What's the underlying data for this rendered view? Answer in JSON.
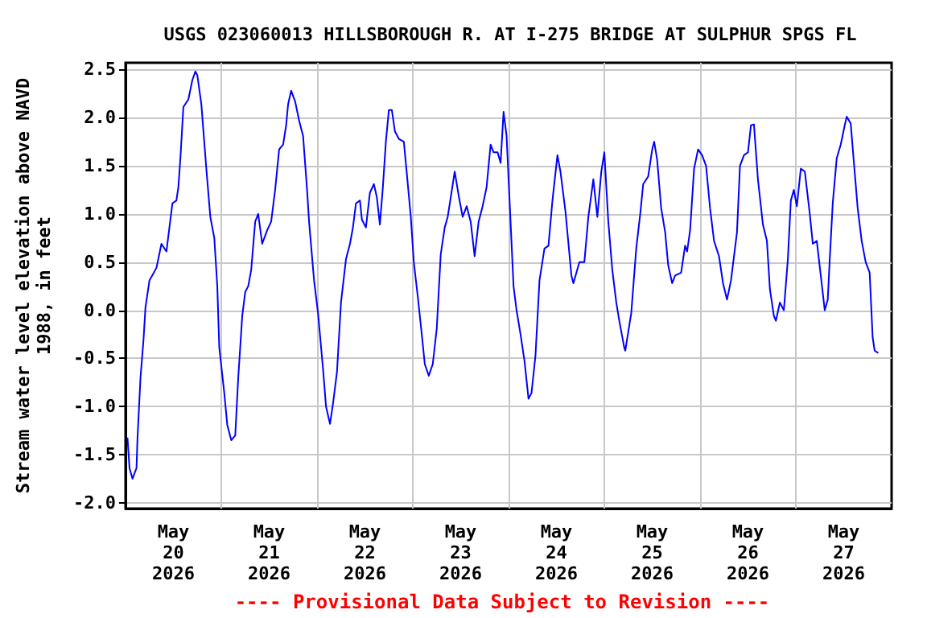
{
  "chart_data": {
    "type": "line",
    "title": "USGS 023060013 HILLSBOROUGH R. AT I-275 BRIDGE AT SULPHUR SPGS FL",
    "ylabel": "Stream water level elevation above NAVD\n1988, in feet",
    "annotations": [
      "---- Provisional Data Subject to Revision ----"
    ],
    "xlim": [
      "2026-05-20T00:00",
      "2026-05-28T00:00"
    ],
    "xticks": [
      {
        "value": "2026-05-20T12:00",
        "label": "May\n20\n2026"
      },
      {
        "value": "2026-05-21T12:00",
        "label": "May\n21\n2026"
      },
      {
        "value": "2026-05-22T12:00",
        "label": "May\n22\n2026"
      },
      {
        "value": "2026-05-23T12:00",
        "label": "May\n23\n2026"
      },
      {
        "value": "2026-05-24T12:00",
        "label": "May\n24\n2026"
      },
      {
        "value": "2026-05-25T12:00",
        "label": "May\n25\n2026"
      },
      {
        "value": "2026-05-26T12:00",
        "label": "May\n26\n2026"
      },
      {
        "value": "2026-05-27T12:00",
        "label": "May\n27\n2026"
      },
      {
        "value": "2026-05-21T00:00",
        "label": null
      },
      {
        "value": "2026-05-22T00:00",
        "label": null
      },
      {
        "value": "2026-05-23T00:00",
        "label": null
      },
      {
        "value": "2026-05-24T00:00",
        "label": null
      },
      {
        "value": "2026-05-25T00:00",
        "label": null
      },
      {
        "value": "2026-05-26T00:00",
        "label": null
      },
      {
        "value": "2026-05-27T00:00",
        "label": null
      }
    ],
    "ylim": [
      -2.06,
      2.57
    ],
    "yticks": [
      2.5,
      {
        "value": 2,
        "label": "2.0"
      },
      1.5,
      {
        "value": 1,
        "label": "1.0"
      },
      0.5,
      {
        "value": 0,
        "label": "0.0"
      },
      -0.5,
      {
        "value": -1,
        "label": "-1.0"
      },
      -1.5,
      {
        "value": -2,
        "label": "-2.0"
      }
    ],
    "grid": true,
    "marker": "none",
    "line_style": "solid",
    "series": [
      {
        "color": "#0000ff",
        "x": [
          "2026-05-20T00:30",
          "2026-05-20T01:00",
          "2026-05-20T01:45",
          "2026-05-20T02:45",
          "2026-05-20T03:00",
          "2026-05-20T03:45",
          "2026-05-20T04:30",
          "2026-05-20T05:00",
          "2026-05-20T06:00",
          "2026-05-20T07:45",
          "2026-05-20T09:00",
          "2026-05-20T10:15",
          "2026-05-20T11:00",
          "2026-05-20T11:45",
          "2026-05-20T12:45",
          "2026-05-20T13:15",
          "2026-05-20T13:45",
          "2026-05-20T14:30",
          "2026-05-20T15:45",
          "2026-05-20T16:45",
          "2026-05-20T17:30",
          "2026-05-20T18:00",
          "2026-05-20T19:00",
          "2026-05-20T20:15",
          "2026-05-20T21:15",
          "2026-05-20T22:15",
          "2026-05-20T23:00",
          "2026-05-20T23:30",
          "2026-05-21T00:45",
          "2026-05-21T01:30",
          "2026-05-21T02:30",
          "2026-05-21T03:30",
          "2026-05-21T04:15",
          "2026-05-21T05:15",
          "2026-05-21T06:00",
          "2026-05-21T06:45",
          "2026-05-21T07:30",
          "2026-05-21T08:30",
          "2026-05-21T09:15",
          "2026-05-21T10:15",
          "2026-05-21T11:30",
          "2026-05-21T12:30",
          "2026-05-21T13:30",
          "2026-05-21T14:30",
          "2026-05-21T15:30",
          "2026-05-21T16:15",
          "2026-05-21T16:45",
          "2026-05-21T17:30",
          "2026-05-21T18:30",
          "2026-05-21T19:30",
          "2026-05-21T20:30",
          "2026-05-21T21:30",
          "2026-05-21T22:00",
          "2026-05-21T23:15",
          "2026-05-22T00:15",
          "2026-05-22T01:30",
          "2026-05-22T02:15",
          "2026-05-22T03:15",
          "2026-05-22T04:00",
          "2026-05-22T05:00",
          "2026-05-22T06:00",
          "2026-05-22T07:15",
          "2026-05-22T08:15",
          "2026-05-22T09:00",
          "2026-05-22T09:45",
          "2026-05-22T10:45",
          "2026-05-22T11:15",
          "2026-05-22T12:15",
          "2026-05-22T13:15",
          "2026-05-22T14:15",
          "2026-05-22T15:00",
          "2026-05-22T15:45",
          "2026-05-22T16:30",
          "2026-05-22T17:15",
          "2026-05-22T18:00",
          "2026-05-22T18:45",
          "2026-05-22T19:30",
          "2026-05-22T20:30",
          "2026-05-22T21:45",
          "2026-05-22T22:30",
          "2026-05-22T23:30",
          "2026-05-23T00:15",
          "2026-05-23T01:15",
          "2026-05-23T02:15",
          "2026-05-23T03:00",
          "2026-05-23T04:00",
          "2026-05-23T05:00",
          "2026-05-23T06:00",
          "2026-05-23T07:00",
          "2026-05-23T08:00",
          "2026-05-23T08:45",
          "2026-05-23T09:30",
          "2026-05-23T10:30",
          "2026-05-23T11:30",
          "2026-05-23T12:30",
          "2026-05-23T13:30",
          "2026-05-23T14:30",
          "2026-05-23T15:30",
          "2026-05-23T16:30",
          "2026-05-23T17:30",
          "2026-05-23T18:30",
          "2026-05-23T19:30",
          "2026-05-23T20:15",
          "2026-05-23T21:15",
          "2026-05-23T22:00",
          "2026-05-23T22:45",
          "2026-05-23T23:30",
          "2026-05-24T00:15",
          "2026-05-24T01:15",
          "2026-05-24T02:00",
          "2026-05-24T03:00",
          "2026-05-24T04:00",
          "2026-05-24T05:00",
          "2026-05-24T05:45",
          "2026-05-24T06:45",
          "2026-05-24T07:45",
          "2026-05-24T09:00",
          "2026-05-24T10:00",
          "2026-05-24T11:00",
          "2026-05-24T12:15",
          "2026-05-24T13:00",
          "2026-05-24T14:15",
          "2026-05-24T15:45",
          "2026-05-24T16:15",
          "2026-05-24T17:45",
          "2026-05-24T19:00",
          "2026-05-24T20:00",
          "2026-05-24T21:15",
          "2026-05-24T22:15",
          "2026-05-24T23:15",
          "2026-05-25T00:00",
          "2026-05-25T01:00",
          "2026-05-25T02:00",
          "2026-05-25T03:00",
          "2026-05-25T03:45",
          "2026-05-25T05:00",
          "2026-05-25T05:15",
          "2026-05-25T06:45",
          "2026-05-25T08:00",
          "2026-05-25T09:00",
          "2026-05-25T09:45",
          "2026-05-25T11:00",
          "2026-05-25T12:00",
          "2026-05-25T12:30",
          "2026-05-25T13:15",
          "2026-05-25T14:15",
          "2026-05-25T15:15",
          "2026-05-25T16:00",
          "2026-05-25T17:00",
          "2026-05-25T17:45",
          "2026-05-25T19:15",
          "2026-05-25T20:15",
          "2026-05-25T20:45",
          "2026-05-25T21:30",
          "2026-05-25T22:30",
          "2026-05-25T23:30",
          "2026-05-26T00:30",
          "2026-05-26T01:30",
          "2026-05-26T02:30",
          "2026-05-26T03:30",
          "2026-05-26T04:45",
          "2026-05-26T05:45",
          "2026-05-26T06:45",
          "2026-05-26T07:45",
          "2026-05-26T09:15",
          "2026-05-26T10:00",
          "2026-05-26T11:00",
          "2026-05-26T12:00",
          "2026-05-26T12:45",
          "2026-05-26T13:30",
          "2026-05-26T14:30",
          "2026-05-26T15:45",
          "2026-05-26T16:45",
          "2026-05-26T17:30",
          "2026-05-26T18:30",
          "2026-05-26T19:00",
          "2026-05-26T20:00",
          "2026-05-26T21:00",
          "2026-05-26T22:00",
          "2026-05-26T22:45",
          "2026-05-26T23:30",
          "2026-05-27T00:15",
          "2026-05-27T01:15",
          "2026-05-27T02:15",
          "2026-05-27T03:30",
          "2026-05-27T04:15",
          "2026-05-27T05:15",
          "2026-05-27T06:15",
          "2026-05-27T07:15",
          "2026-05-27T08:00",
          "2026-05-27T08:30",
          "2026-05-27T09:15",
          "2026-05-27T10:15",
          "2026-05-27T11:15",
          "2026-05-27T12:15",
          "2026-05-27T12:45",
          "2026-05-27T13:45",
          "2026-05-27T14:30",
          "2026-05-27T15:30",
          "2026-05-27T16:30",
          "2026-05-27T17:30",
          "2026-05-27T18:30",
          "2026-05-27T19:15",
          "2026-05-27T19:45",
          "2026-05-27T20:30"
        ],
        "values": [
          -1.33,
          -1.64,
          -1.75,
          -1.64,
          -1.33,
          -0.7,
          -0.31,
          0.03,
          0.31,
          0.44,
          0.69,
          0.61,
          0.86,
          1.11,
          1.14,
          1.28,
          1.58,
          2.11,
          2.19,
          2.39,
          2.48,
          2.44,
          2.14,
          1.47,
          0.97,
          0.75,
          0.25,
          -0.39,
          -0.86,
          -1.19,
          -1.35,
          -1.3,
          -0.7,
          -0.06,
          0.19,
          0.25,
          0.42,
          0.92,
          1.0,
          0.69,
          0.83,
          0.92,
          1.25,
          1.67,
          1.72,
          1.92,
          2.14,
          2.28,
          2.17,
          1.97,
          1.81,
          1.25,
          0.92,
          0.31,
          -0.03,
          -0.61,
          -1.0,
          -1.18,
          -0.97,
          -0.64,
          0.08,
          0.53,
          0.69,
          0.86,
          1.11,
          1.14,
          0.94,
          0.86,
          1.22,
          1.31,
          1.17,
          0.89,
          1.28,
          1.75,
          2.08,
          2.08,
          1.86,
          1.78,
          1.75,
          1.42,
          0.97,
          0.5,
          0.14,
          -0.25,
          -0.56,
          -0.68,
          -0.56,
          -0.19,
          0.58,
          0.86,
          0.97,
          1.17,
          1.44,
          1.19,
          0.97,
          1.08,
          0.92,
          0.56,
          0.92,
          1.08,
          1.28,
          1.72,
          1.64,
          1.64,
          1.53,
          2.06,
          1.81,
          1.14,
          0.25,
          0.0,
          -0.25,
          -0.53,
          -0.92,
          -0.86,
          -0.47,
          0.31,
          0.64,
          0.67,
          1.14,
          1.61,
          1.44,
          1.03,
          0.36,
          0.28,
          0.5,
          0.5,
          0.97,
          1.36,
          0.97,
          1.44,
          1.64,
          0.92,
          0.42,
          0.08,
          -0.11,
          -0.39,
          -0.42,
          -0.03,
          0.64,
          1.0,
          1.31,
          1.39,
          1.67,
          1.75,
          1.56,
          1.06,
          0.81,
          0.47,
          0.28,
          0.36,
          0.39,
          0.67,
          0.61,
          0.83,
          1.47,
          1.67,
          1.61,
          1.5,
          1.06,
          0.72,
          0.56,
          0.28,
          0.11,
          0.31,
          0.81,
          1.5,
          1.61,
          1.64,
          1.92,
          1.93,
          1.36,
          0.89,
          0.72,
          0.22,
          -0.06,
          -0.11,
          0.08,
          0.0,
          0.53,
          1.14,
          1.25,
          1.08,
          1.47,
          1.44,
          1.0,
          0.69,
          0.72,
          0.36,
          0.0,
          0.11,
          0.53,
          1.11,
          1.58,
          1.72,
          1.92,
          2.01,
          1.94,
          1.56,
          1.06,
          0.72,
          0.5,
          0.39,
          -0.28,
          -0.42,
          -0.44
        ]
      }
    ]
  }
}
